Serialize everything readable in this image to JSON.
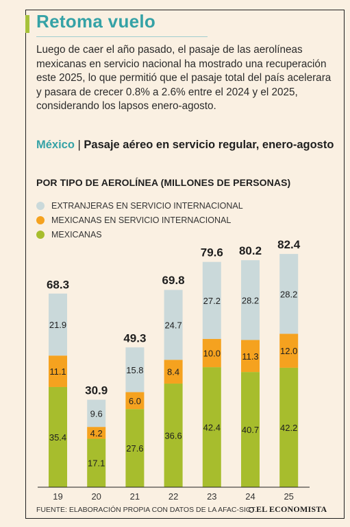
{
  "header": {
    "title": "Retoma vuelo",
    "intro": "Luego de caer el año pasado, el pasaje de las aerolíneas mexicanas en servicio nacional ha mostrado una recuperación este 2025, lo que permitió que el pasaje total del país acelerara y pasara de crecer 0.8% a 2.6% entre el 2024 y el 2025, considerando los lapsos enero-agosto."
  },
  "subtitle": {
    "country": "México",
    "separator": "|",
    "text": "Pasaje aéreo en servicio regular, enero-agosto"
  },
  "chart_data": {
    "type": "bar",
    "stacked": true,
    "title": "POR TIPO DE AEROLÍNEA (MILLONES DE PERSONAS)",
    "categories": [
      "19",
      "20",
      "21",
      "22",
      "23",
      "24",
      "25"
    ],
    "series": [
      {
        "name": "MEXICANAS",
        "color": "#a7bd2d",
        "values": [
          35.4,
          17.1,
          27.6,
          36.6,
          42.4,
          40.7,
          42.2
        ]
      },
      {
        "name": "MEXICANAS EN SERVICIO INTERNACIONAL",
        "color": "#f5a21f",
        "values": [
          11.1,
          4.2,
          6.0,
          8.4,
          10.0,
          11.3,
          12.0
        ]
      },
      {
        "name": "EXTRANJERAS EN SERVICIO INTERNACIONAL",
        "color": "#cad9da",
        "values": [
          21.9,
          9.6,
          15.8,
          24.7,
          27.2,
          28.2,
          28.2
        ]
      }
    ],
    "totals": [
      68.3,
      30.9,
      49.3,
      69.8,
      79.6,
      80.2,
      82.4
    ],
    "value_labels": {
      "totals": [
        "68.3",
        "30.9",
        "49.3",
        "69.8",
        "79.6",
        "80.2",
        "82.4"
      ],
      "MEXICANAS": [
        "35.4",
        "17.1",
        "27.6",
        "36.6",
        "42.4",
        "40.7",
        "42.2"
      ],
      "MEXICANAS EN SERVICIO INTERNACIONAL": [
        "11.1",
        "4.2",
        "6.0",
        "8.4",
        "10.0",
        "11.3",
        "12.0"
      ],
      "EXTRANJERAS EN SERVICIO INTERNACIONAL": [
        "21.9",
        "9.6",
        "15.8",
        "24.7",
        "27.2",
        "28.2",
        "28.2"
      ]
    },
    "legend_order": [
      "EXTRANJERAS EN SERVICIO INTERNACIONAL",
      "MEXICANAS EN SERVICIO INTERNACIONAL",
      "MEXICANAS"
    ],
    "ylim": [
      0,
      90
    ],
    "grid": false,
    "legend_position": "top-left"
  },
  "footer": {
    "source": "FUENTE: ELABORACIÓN PROPIA CON DATOS DE LA AFAC-SICT.",
    "logo": "EL ECONOMISTA"
  },
  "colors": {
    "title": "#35a2a6",
    "background": "#faf0e2",
    "accent": "#a7c23a"
  }
}
